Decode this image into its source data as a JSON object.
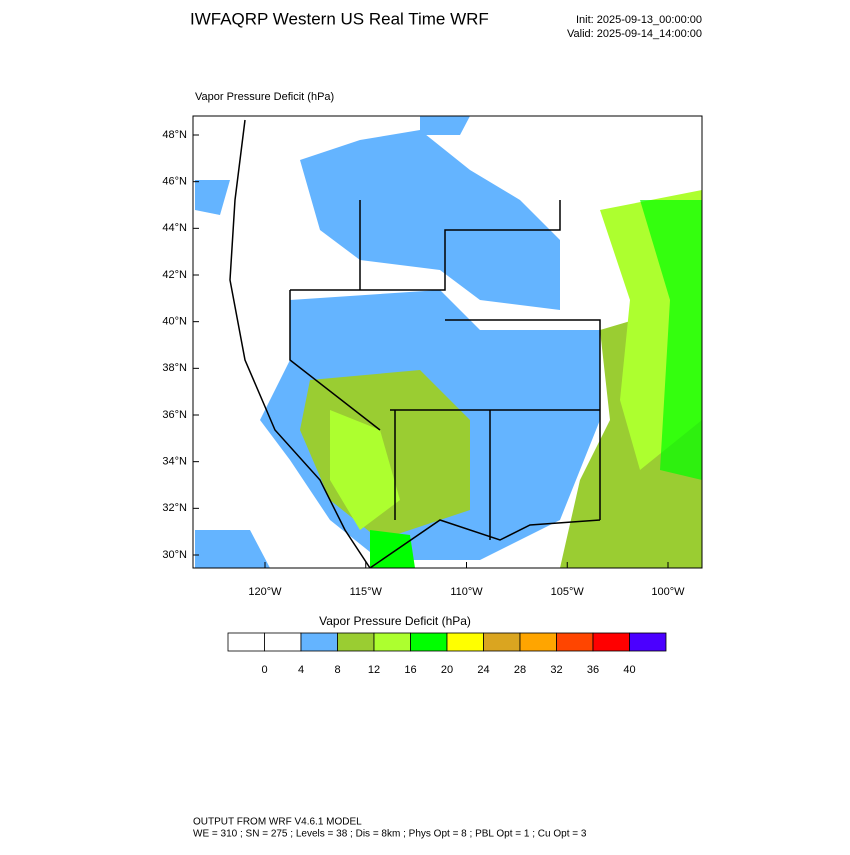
{
  "header": {
    "title": "IWFAQRP Western US Real Time WRF",
    "init": "Init: 2025-09-13_00:00:00",
    "valid": "Valid: 2025-09-14_14:00:00"
  },
  "map": {
    "label": "Vapor Pressure Deficit   (hPa)",
    "lat_labels": [
      "48°N",
      "46°N",
      "44°N",
      "42°N",
      "40°N",
      "38°N",
      "36°N",
      "34°N",
      "32°N",
      "30°N"
    ],
    "lon_labels": [
      "120°W",
      "115°W",
      "110°W",
      "105°W",
      "100°W"
    ]
  },
  "colorbar": {
    "title": "Vapor Pressure Deficit  (hPa)",
    "levels": [
      0,
      4,
      8,
      12,
      16,
      20,
      24,
      28,
      32,
      36,
      40
    ],
    "colors": [
      "#ffffff",
      "#ffffff",
      "#64b4ff",
      "#9acd32",
      "#adff2f",
      "#00ff00",
      "#ffff00",
      "#daa520",
      "#ffa500",
      "#ff4500",
      "#ff0000",
      "#4b00ff"
    ]
  },
  "footer": {
    "line1": "OUTPUT FROM WRF V4.6.1 MODEL",
    "line2": "WE = 310 ; SN = 275 ; Levels = 38 ; Dis = 8km ; Phys Opt = 8 ; PBL Opt = 1 ; Cu Opt = 3"
  }
}
